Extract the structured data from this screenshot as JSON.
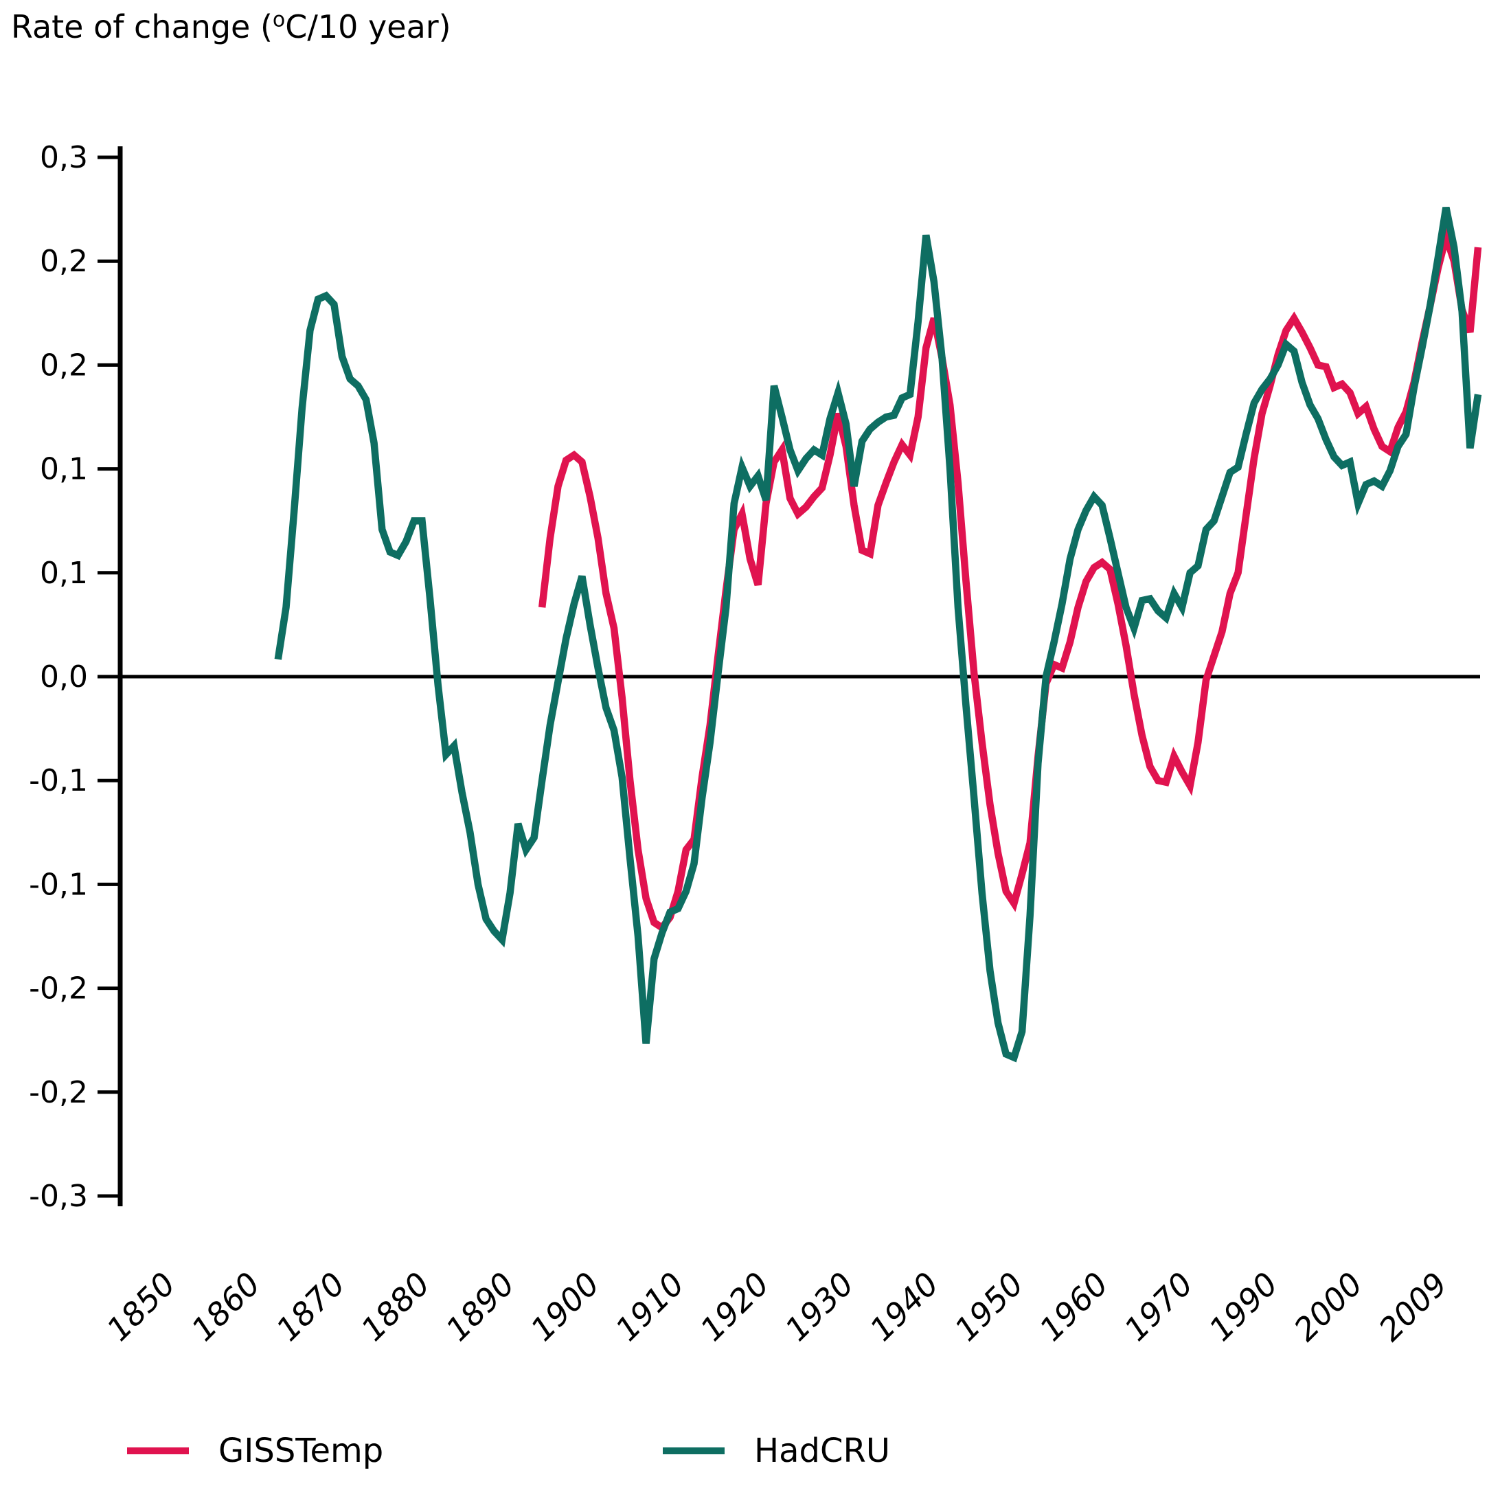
{
  "title": {
    "prefix": "Rate of change (",
    "sup": "o",
    "suffix": "C/10 year)"
  },
  "colors": {
    "gisstemp": "#E0134F",
    "hadcru": "#0E6E62",
    "axis": "#000000"
  },
  "legend": [
    {
      "label": "GISSTemp",
      "series": "gisstemp"
    },
    {
      "label": "HadCRU",
      "series": "hadcru"
    }
  ],
  "chart_data": {
    "type": "line",
    "title": "Rate of change (°C/10 year)",
    "xlabel": "",
    "ylabel": "Rate of change (°C/10 year)",
    "ylim": [
      -0.3,
      0.3
    ],
    "xlim": [
      1850,
      2009
    ],
    "grid": false,
    "legend_position": "bottom",
    "y_tick_labels": [
      "0,3",
      "0,2",
      "0,2",
      "0,1",
      "0,1",
      "0,0",
      "-0,1",
      "-0,1",
      "-0,2",
      "-0,2",
      "-0,3"
    ],
    "y_tick_values": [
      0.3,
      0.24,
      0.18,
      0.12,
      0.06,
      0.0,
      -0.06,
      -0.12,
      -0.18,
      -0.24,
      -0.3
    ],
    "x_tick_labels": [
      "1850",
      "1860",
      "1870",
      "1880",
      "1890",
      "1900",
      "1910",
      "1920",
      "1930",
      "1940",
      "1950",
      "1960",
      "1970",
      "1990",
      "2000",
      "2009"
    ],
    "series": [
      {
        "name": "GISSTemp",
        "color": "#E0134F",
        "start_year": 1892,
        "values": [
          0.04,
          0.08,
          0.11,
          0.125,
          0.128,
          0.124,
          0.104,
          0.08,
          0.048,
          0.028,
          -0.012,
          -0.06,
          -0.1,
          -0.128,
          -0.142,
          -0.145,
          -0.139,
          -0.124,
          -0.1,
          -0.094,
          -0.058,
          -0.028,
          0.012,
          0.05,
          0.085,
          0.094,
          0.068,
          0.053,
          0.1,
          0.124,
          0.131,
          0.103,
          0.094,
          0.098,
          0.104,
          0.109,
          0.128,
          0.152,
          0.133,
          0.099,
          0.073,
          0.071,
          0.099,
          0.112,
          0.124,
          0.134,
          0.128,
          0.15,
          0.19,
          0.207,
          0.184,
          0.157,
          0.112,
          0.055,
          0.002,
          -0.038,
          -0.074,
          -0.102,
          -0.124,
          -0.131,
          -0.114,
          -0.096,
          -0.046,
          -0.004,
          0.007,
          0.005,
          0.02,
          0.04,
          0.055,
          0.063,
          0.066,
          0.062,
          0.042,
          0.018,
          -0.01,
          -0.034,
          -0.052,
          -0.06,
          -0.061,
          -0.046,
          -0.055,
          -0.063,
          -0.038,
          -0.002,
          0.012,
          0.026,
          0.048,
          0.06,
          0.093,
          0.126,
          0.152,
          0.168,
          0.186,
          0.2,
          0.207,
          0.199,
          0.19,
          0.18,
          0.179,
          0.167,
          0.169,
          0.164,
          0.152,
          0.156,
          0.143,
          0.133,
          0.13,
          0.144,
          0.153,
          0.17,
          0.193,
          0.214,
          0.236,
          0.254,
          0.24,
          0.212,
          0.199,
          0.248
        ]
      },
      {
        "name": "HadCRU",
        "color": "#0E6E62",
        "start_year": 1859,
        "values": [
          0.01,
          0.04,
          0.095,
          0.155,
          0.2,
          0.218,
          0.22,
          0.215,
          0.185,
          0.172,
          0.168,
          0.16,
          0.135,
          0.085,
          0.072,
          0.07,
          0.078,
          0.09,
          0.09,
          0.045,
          -0.005,
          -0.045,
          -0.04,
          -0.067,
          -0.09,
          -0.12,
          -0.14,
          -0.147,
          -0.152,
          -0.125,
          -0.085,
          -0.1,
          -0.093,
          -0.06,
          -0.028,
          -0.003,
          0.022,
          0.042,
          0.058,
          0.03,
          0.005,
          -0.018,
          -0.031,
          -0.058,
          -0.105,
          -0.15,
          -0.212,
          -0.163,
          -0.148,
          -0.136,
          -0.134,
          -0.124,
          -0.108,
          -0.07,
          -0.038,
          0.002,
          0.04,
          0.1,
          0.121,
          0.11,
          0.116,
          0.102,
          0.168,
          0.15,
          0.131,
          0.119,
          0.126,
          0.131,
          0.128,
          0.149,
          0.164,
          0.146,
          0.11,
          0.136,
          0.143,
          0.147,
          0.15,
          0.151,
          0.161,
          0.163,
          0.205,
          0.255,
          0.228,
          0.184,
          0.12,
          0.04,
          -0.017,
          -0.07,
          -0.125,
          -0.17,
          -0.2,
          -0.218,
          -0.22,
          -0.205,
          -0.138,
          -0.05,
          0.0,
          0.02,
          0.042,
          0.068,
          0.085,
          0.096,
          0.104,
          0.099,
          0.08,
          0.06,
          0.04,
          0.028,
          0.044,
          0.045,
          0.038,
          0.034,
          0.048,
          0.04,
          0.06,
          0.064,
          0.085,
          0.09,
          0.104,
          0.118,
          0.121,
          0.14,
          0.158,
          0.166,
          0.172,
          0.18,
          0.192,
          0.188,
          0.17,
          0.157,
          0.149,
          0.137,
          0.127,
          0.122,
          0.124,
          0.1,
          0.111,
          0.113,
          0.11,
          0.119,
          0.133,
          0.14,
          0.167,
          0.19,
          0.214,
          0.242,
          0.271,
          0.248,
          0.211,
          0.132,
          0.163
        ]
      }
    ]
  }
}
